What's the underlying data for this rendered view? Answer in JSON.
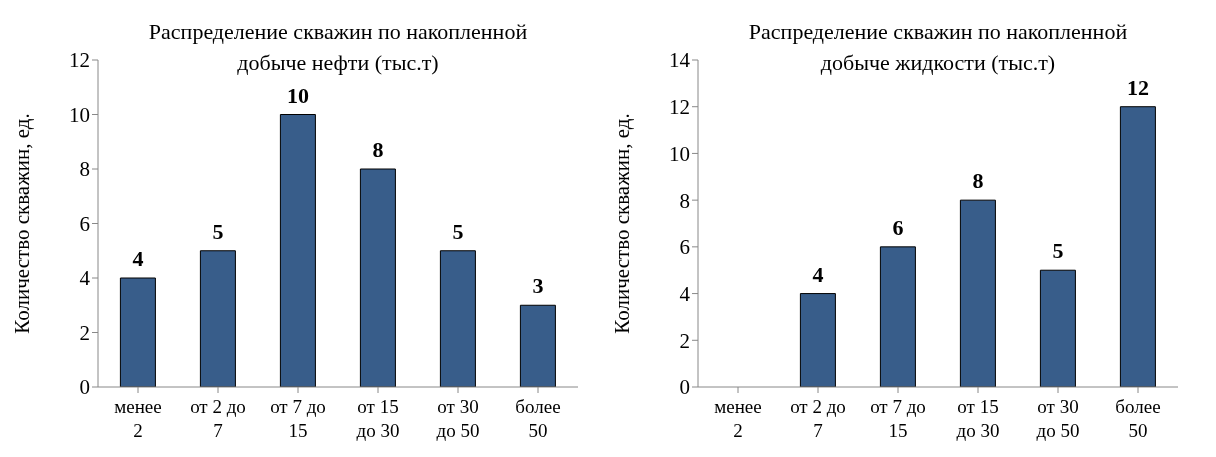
{
  "chart_data": [
    {
      "type": "bar",
      "title": "Распределение скважин по накопленной добыче нефти (тыс.т)",
      "ylabel": "Количество скважин, ед.",
      "categories": [
        "менее\n2",
        "от 2 до\n7",
        "от 7 до\n15",
        "от 15\nдо 30",
        "от 30\nдо 50",
        "более\n50"
      ],
      "values": [
        4,
        5,
        10,
        8,
        5,
        3
      ],
      "color": "#385d8a",
      "ylim": [
        0,
        12
      ],
      "yticks": [
        0,
        2,
        4,
        6,
        8,
        10,
        12
      ],
      "data_labels": true
    },
    {
      "type": "bar",
      "title": "Распределение скважин по накопленной добыче жидкости (тыс.т)",
      "ylabel": "Количество скважин, ед.",
      "categories": [
        "менее\n2",
        "от 2 до\n7",
        "от 7 до\n15",
        "от 15\nдо 30",
        "от 30\nдо 50",
        "более\n50"
      ],
      "values": [
        0,
        4,
        6,
        8,
        5,
        12
      ],
      "value_labels": [
        null,
        "4",
        "6",
        "8",
        "5",
        "12"
      ],
      "color": "#385d8a",
      "ylim": [
        0,
        14
      ],
      "yticks": [
        0,
        2,
        4,
        6,
        8,
        10,
        12,
        14
      ]
    }
  ]
}
